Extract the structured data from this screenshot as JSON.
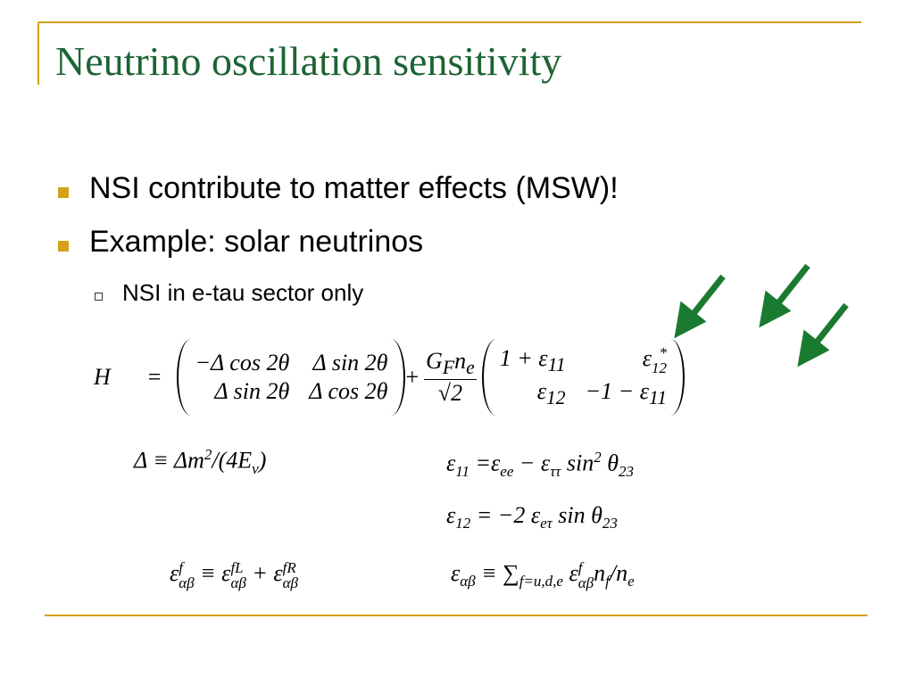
{
  "header": {
    "title": "Neutrino oscillation sensitivity"
  },
  "bullets": [
    "NSI contribute to matter effects (MSW)!",
    "Example: solar neutrinos"
  ],
  "sub_bullets": [
    "NSI in e-tau sector only"
  ],
  "matrix_equation": {
    "lhs": "H",
    "equals": "=",
    "matrix1": [
      [
        [
          {
            "t": "−Δ cos 2θ"
          }
        ],
        [
          {
            "t": "Δ sin 2θ"
          }
        ]
      ],
      [
        [
          {
            "t": "Δ sin 2θ"
          }
        ],
        [
          {
            "t": "Δ cos 2θ"
          }
        ]
      ]
    ],
    "plus": "+",
    "numerator": [
      {
        "t": "G"
      },
      {
        "sub": "F"
      },
      {
        "t": "n"
      },
      {
        "sub": "e"
      }
    ],
    "denominator": [
      {
        "t": "√2"
      }
    ],
    "matrix2": [
      [
        [
          {
            "t": "1 + ε"
          },
          {
            "sub": "11"
          }
        ],
        [
          {
            "t": "ε"
          },
          {
            "sup": "*",
            "sub": "12"
          }
        ]
      ],
      [
        [
          {
            "t": "ε"
          },
          {
            "sub": "12"
          }
        ],
        [
          {
            "t": "−1 − ε"
          },
          {
            "sub": "11"
          }
        ]
      ]
    ]
  },
  "definitions": {
    "delta": [
      {
        "t": "Δ  ≡  Δm"
      },
      {
        "sup": "2"
      },
      {
        "t": "/(4E"
      },
      {
        "sub": "ν"
      },
      {
        "t": ")"
      }
    ],
    "eps11": [
      {
        "t": "ε"
      },
      {
        "sub": "11"
      },
      {
        "t": " =ε"
      },
      {
        "sub": "ee"
      },
      {
        "t": " − ε"
      },
      {
        "sub": "ττ"
      },
      {
        "t": " sin"
      },
      {
        "sup": "2"
      },
      {
        "t": " θ"
      },
      {
        "sub": "23"
      }
    ],
    "eps12": [
      {
        "t": "ε"
      },
      {
        "sub": "12"
      },
      {
        "t": " = −2 ε"
      },
      {
        "sub": "eτ"
      },
      {
        "t": " sin θ"
      },
      {
        "sub": "23"
      }
    ],
    "eps_f": [
      {
        "t": "ε"
      },
      {
        "sup": "f",
        "sub": "αβ"
      },
      {
        "t": "  ≡  ε"
      },
      {
        "sup": "fL",
        "sub": "αβ"
      },
      {
        "t": " + ε"
      },
      {
        "sup": "fR",
        "sub": "αβ"
      }
    ],
    "eps_ab": [
      {
        "t": "ε"
      },
      {
        "sub": "αβ"
      },
      {
        "t": " ≡ ∑"
      },
      {
        "sub": "f=u,d,e"
      },
      {
        "t": " ε"
      },
      {
        "sup": "f",
        "sub": "αβ"
      },
      {
        "t": "n"
      },
      {
        "sub": "f"
      },
      {
        "t": "/n"
      },
      {
        "sub": "e"
      }
    ]
  }
}
